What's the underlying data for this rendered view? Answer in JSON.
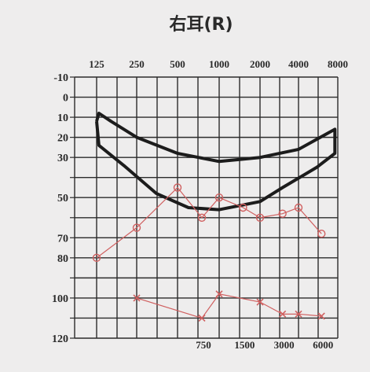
{
  "chart_data": {
    "type": "line",
    "title": "右耳(R)",
    "x_top_ticks": [
      "125",
      "250",
      "500",
      "1000",
      "2000",
      "4000",
      "8000"
    ],
    "x_bottom_ticks": [
      "750",
      "1500",
      "3000",
      "6000"
    ],
    "y_ticks": [
      "-10",
      "0",
      "10",
      "20",
      "30",
      "50",
      "70",
      "80",
      "100",
      "120"
    ],
    "ylim": [
      -10,
      120
    ],
    "y_inverted": true,
    "grid": true,
    "series": [
      {
        "marker": "o",
        "color": "#d06060",
        "x": [
          125,
          250,
          500,
          750,
          1000,
          1500,
          2000,
          3000,
          4000,
          6000
        ],
        "y": [
          80,
          65,
          45,
          60,
          50,
          55,
          60,
          58,
          55,
          68
        ]
      },
      {
        "marker": "x",
        "color": "#d06060",
        "x": [
          250,
          750,
          1000,
          2000,
          3000,
          4000,
          6000
        ],
        "y": [
          100,
          110,
          98,
          102,
          108,
          108,
          109
        ]
      }
    ],
    "annotation_shape": "banana",
    "colors": {
      "grid": "#2b2b2b",
      "annotation": "#1c1c1c",
      "data": "#d06060",
      "background": "#eeeded"
    }
  }
}
